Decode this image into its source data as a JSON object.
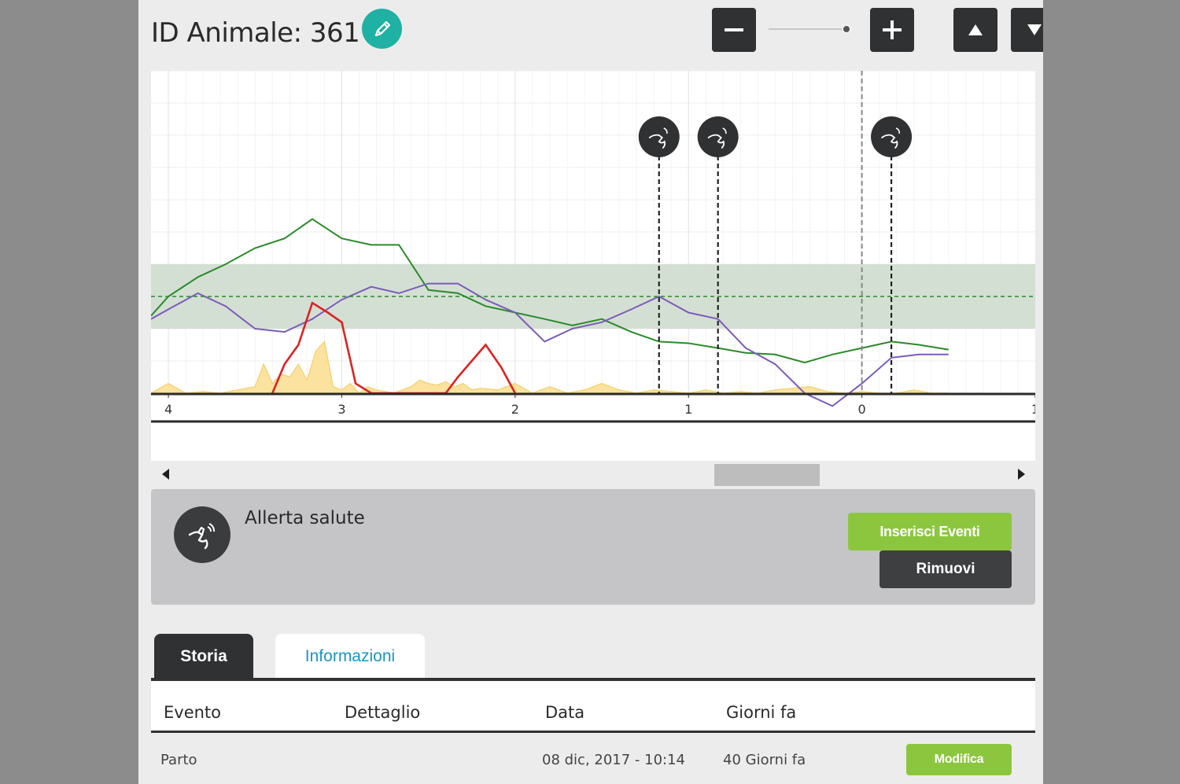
{
  "header": {
    "title": "ID Animale: 361",
    "edit_icon": "pencil-icon",
    "zoom_out_icon": "minus-icon",
    "zoom_in_icon": "plus-icon",
    "zoom_level": 0.95,
    "move_up_icon": "arrow-up-icon",
    "move_down_icon": "arrow-down-icon"
  },
  "chart_data": {
    "type": "line",
    "x_axis_ticks": [
      "4",
      "3",
      "2",
      "1",
      "0",
      "1"
    ],
    "xlim": [
      4.1,
      -1.0
    ],
    "ylim": [
      0,
      10
    ],
    "grid": true,
    "reference_band": [
      2,
      4
    ],
    "reference_line": 3,
    "colors": {
      "green": "#2a8a2a",
      "purple": "#7b5cb8",
      "red": "#dd2222",
      "yellow": "#f5d272",
      "band": "#cfdccf"
    },
    "series": [
      {
        "color": "green",
        "x": [
          4.1,
          4.0,
          3.83,
          3.67,
          3.5,
          3.33,
          3.17,
          3.0,
          2.83,
          2.67,
          2.5,
          2.33,
          2.17,
          2.0,
          1.83,
          1.67,
          1.5,
          1.33,
          1.17,
          1.0,
          0.83,
          0.67,
          0.5,
          0.33,
          0.17,
          0.0,
          -0.17,
          -0.33,
          -0.5
        ],
        "values": [
          2.4,
          3.0,
          3.6,
          4.0,
          4.5,
          4.8,
          5.4,
          4.8,
          4.6,
          4.6,
          3.2,
          3.1,
          2.7,
          2.5,
          2.3,
          2.1,
          2.3,
          1.9,
          1.6,
          1.55,
          1.4,
          1.25,
          1.2,
          0.95,
          1.2,
          1.4,
          1.6,
          1.5,
          1.35
        ]
      },
      {
        "color": "purple",
        "x": [
          4.1,
          4.0,
          3.83,
          3.67,
          3.5,
          3.33,
          3.17,
          3.0,
          2.83,
          2.67,
          2.5,
          2.33,
          2.17,
          2.0,
          1.83,
          1.67,
          1.5,
          1.33,
          1.17,
          1.0,
          0.83,
          0.67,
          0.5,
          0.33,
          0.17,
          0.0,
          -0.17,
          -0.33,
          -0.5
        ],
        "values": [
          2.3,
          2.6,
          3.1,
          2.7,
          2.0,
          1.9,
          2.3,
          2.9,
          3.3,
          3.1,
          3.4,
          3.4,
          2.9,
          2.5,
          1.6,
          2.0,
          2.2,
          2.6,
          3.0,
          2.5,
          2.3,
          1.4,
          0.9,
          0.0,
          -0.4,
          0.3,
          1.1,
          1.2,
          1.2
        ]
      },
      {
        "color": "red",
        "x": [
          3.4,
          3.33,
          3.25,
          3.17,
          3.08,
          3.0,
          2.92,
          2.83,
          2.75,
          2.5,
          2.4,
          2.33,
          2.25,
          2.17,
          2.08,
          2.0
        ],
        "values": [
          0,
          0.9,
          1.5,
          2.8,
          2.5,
          2.2,
          0.3,
          0,
          0,
          0,
          0,
          0.5,
          1.0,
          1.5,
          0.8,
          0
        ]
      },
      {
        "color": "yellow",
        "x": [
          4.1,
          4.0,
          3.9,
          3.8,
          3.7,
          3.6,
          3.5,
          3.45,
          3.4,
          3.35,
          3.3,
          3.25,
          3.2,
          3.15,
          3.1,
          3.05,
          3.0,
          2.95,
          2.9,
          2.85,
          2.8,
          2.7,
          2.6,
          2.55,
          2.5,
          2.45,
          2.4,
          2.35,
          2.3,
          2.25,
          2.2,
          2.1,
          2.0,
          1.9,
          1.8,
          1.7,
          1.6,
          1.5,
          1.4,
          1.3,
          1.2,
          1.1,
          1.0,
          0.9,
          0.8,
          0.7,
          0.6,
          0.5,
          0.4,
          0.3,
          0.2,
          0.1,
          0.0,
          -0.1,
          -0.2,
          -0.3,
          -0.4,
          -0.5
        ],
        "values": [
          0,
          0.3,
          0,
          0.05,
          0,
          0.1,
          0.2,
          0.9,
          0.3,
          0.6,
          0.5,
          0.9,
          0.4,
          1.3,
          1.6,
          0.2,
          0.1,
          0.3,
          0,
          0.2,
          0.1,
          0,
          0.2,
          0.4,
          0.3,
          0.25,
          0.35,
          0.2,
          0.3,
          0.1,
          0.15,
          0.1,
          0.3,
          0,
          0.2,
          0,
          0.1,
          0.3,
          0.1,
          0,
          0.1,
          0.05,
          0,
          0.1,
          0,
          0.05,
          0,
          0.1,
          0.15,
          0.2,
          0.05,
          0,
          0.05,
          0,
          0,
          0.1,
          0,
          0
        ]
      }
    ],
    "event_markers": [
      {
        "x": 1.17,
        "icon": "health-alert-icon"
      },
      {
        "x": 0.83,
        "icon": "health-alert-icon"
      },
      {
        "x": -0.17,
        "icon": "health-alert-icon"
      }
    ],
    "today_line_x": 0.0
  },
  "alert": {
    "icon": "health-alert-icon",
    "label": "Allerta salute",
    "insert_button": "Inserisci Eventi",
    "remove_button": "Rimuovi"
  },
  "tabs": [
    {
      "label": "Storia",
      "active": true
    },
    {
      "label": "Informazioni",
      "active": false
    }
  ],
  "table": {
    "headers": [
      "Evento",
      "Dettaglio",
      "Data",
      "Giorni fa"
    ],
    "rows": [
      {
        "evento": "Parto",
        "dettaglio": "",
        "data": "08 dic, 2017 - 10:14",
        "giorni_fa": "40 Giorni fa",
        "action": "Modifica"
      }
    ]
  }
}
